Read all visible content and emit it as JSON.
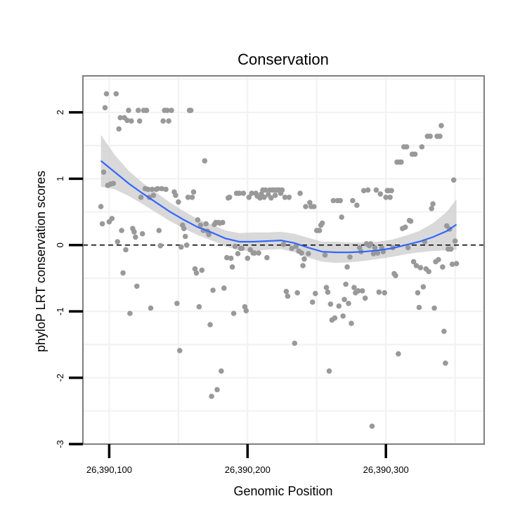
{
  "chart_data": {
    "type": "scatter",
    "title": "Conservation",
    "xlabel": "Genomic Position",
    "ylabel": "phyloP LRT conservation scores",
    "xlim": [
      26390081,
      26390371
    ],
    "ylim": [
      -3,
      2.55
    ],
    "x_ticks": [
      {
        "value": 26390100,
        "label": "26,390,100"
      },
      {
        "value": 26390200,
        "label": "26,390,200"
      },
      {
        "value": 26390300,
        "label": "26,390,300"
      }
    ],
    "y_ticks": [
      {
        "value": -3,
        "label": "-3"
      },
      {
        "value": -2,
        "label": "-2"
      },
      {
        "value": -1,
        "label": "-1"
      },
      {
        "value": 0,
        "label": "0"
      },
      {
        "value": 1,
        "label": "1"
      },
      {
        "value": 2,
        "label": "2"
      }
    ],
    "reference_line": {
      "y": 0,
      "style": "dashed"
    },
    "grid": true,
    "colors": {
      "points": "#999999",
      "smooth": "#3366ff",
      "band": "#cccccc",
      "panel_border": "#7f7f7f",
      "grid": "#f2f2f2"
    },
    "points": [
      [
        26390094,
        0.58
      ],
      [
        26390095,
        0.32
      ],
      [
        26390096,
        1.1
      ],
      [
        26390097,
        2.07
      ],
      [
        26390098,
        2.28
      ],
      [
        26390099,
        0.9
      ],
      [
        26390100,
        0.35
      ],
      [
        26390101,
        0.92
      ],
      [
        26390102,
        0.4
      ],
      [
        26390103,
        0.93
      ],
      [
        26390105,
        2.28
      ],
      [
        26390106,
        0.05
      ],
      [
        26390107,
        1.75
      ],
      [
        26390108,
        1.92
      ],
      [
        26390109,
        0.22
      ],
      [
        26390110,
        -0.42
      ],
      [
        26390111,
        1.92
      ],
      [
        26390112,
        -0.07
      ],
      [
        26390113,
        1.88
      ],
      [
        26390114,
        2.03
      ],
      [
        26390115,
        -1.03
      ],
      [
        26390116,
        1.87
      ],
      [
        26390117,
        0.25
      ],
      [
        26390118,
        0.2
      ],
      [
        26390119,
        0.12
      ],
      [
        26390120,
        -0.62
      ],
      [
        26390121,
        2.03
      ],
      [
        26390122,
        1.87
      ],
      [
        26390123,
        0.72
      ],
      [
        26390124,
        0.17
      ],
      [
        26390125,
        2.03
      ],
      [
        26390126,
        0.85
      ],
      [
        26390127,
        2.03
      ],
      [
        26390128,
        0.84
      ],
      [
        26390129,
        0.72
      ],
      [
        26390130,
        -0.95
      ],
      [
        26390131,
        0.84
      ],
      [
        26390132,
        0.75
      ],
      [
        26390134,
        0.84
      ],
      [
        26390135,
        0.85
      ],
      [
        26390136,
        0.22
      ],
      [
        26390137,
        -0.01
      ],
      [
        26390138,
        0.85
      ],
      [
        26390139,
        1.87
      ],
      [
        26390140,
        2.03
      ],
      [
        26390141,
        0.84
      ],
      [
        26390142,
        2.03
      ],
      [
        26390143,
        1.87
      ],
      [
        26390145,
        2.03
      ],
      [
        26390147,
        0.8
      ],
      [
        26390148,
        0.75
      ],
      [
        26390149,
        -0.88
      ],
      [
        26390150,
        0.65
      ],
      [
        26390151,
        -1.59
      ],
      [
        26390152,
        -0.03
      ],
      [
        26390153,
        0.3
      ],
      [
        26390154,
        0.25
      ],
      [
        26390155,
        0.13
      ],
      [
        26390156,
        0.0
      ],
      [
        26390157,
        0.72
      ],
      [
        26390158,
        2.03
      ],
      [
        26390159,
        2.03
      ],
      [
        26390160,
        0.72
      ],
      [
        26390161,
        0.8
      ],
      [
        26390162,
        -0.36
      ],
      [
        26390163,
        -0.42
      ],
      [
        26390164,
        0.38
      ],
      [
        26390165,
        -0.93
      ],
      [
        26390166,
        0.3
      ],
      [
        26390167,
        -0.38
      ],
      [
        26390168,
        0.22
      ],
      [
        26390169,
        1.27
      ],
      [
        26390170,
        0.32
      ],
      [
        26390171,
        0.21
      ],
      [
        26390172,
        0.16
      ],
      [
        26390173,
        -1.2
      ],
      [
        26390174,
        -2.28
      ],
      [
        26390175,
        -0.68
      ],
      [
        26390176,
        0.31
      ],
      [
        26390177,
        0.34
      ],
      [
        26390178,
        -2.18
      ],
      [
        26390179,
        0.34
      ],
      [
        26390180,
        0.33
      ],
      [
        26390181,
        -1.9
      ],
      [
        26390182,
        0.34
      ],
      [
        26390183,
        -0.65
      ],
      [
        26390185,
        -0.19
      ],
      [
        26390186,
        0.71
      ],
      [
        26390187,
        0.72
      ],
      [
        26390188,
        -0.2
      ],
      [
        26390189,
        -0.33
      ],
      [
        26390190,
        -1.03
      ],
      [
        26390191,
        -0.02
      ],
      [
        26390192,
        0.78
      ],
      [
        26390193,
        -0.13
      ],
      [
        26390194,
        0.78
      ],
      [
        26390195,
        -0.05
      ],
      [
        26390196,
        -0.05
      ],
      [
        26390197,
        0.78
      ],
      [
        26390198,
        -0.93
      ],
      [
        26390199,
        -0.99
      ],
      [
        26390200,
        -0.2
      ],
      [
        26390201,
        0.72
      ],
      [
        26390202,
        -0.07
      ],
      [
        26390203,
        0.78
      ],
      [
        26390204,
        -0.12
      ],
      [
        26390205,
        -0.12
      ],
      [
        26390206,
        0.78
      ],
      [
        26390207,
        0.74
      ],
      [
        26390208,
        -0.12
      ],
      [
        26390209,
        0.71
      ],
      [
        26390210,
        0.77
      ],
      [
        26390211,
        0.83
      ],
      [
        26390212,
        0.72
      ],
      [
        26390213,
        0.83
      ],
      [
        26390214,
        -0.19
      ],
      [
        26390215,
        0.76
      ],
      [
        26390216,
        0.83
      ],
      [
        26390217,
        0.71
      ],
      [
        26390218,
        0.83
      ],
      [
        26390219,
        0.83
      ],
      [
        26390220,
        0.75
      ],
      [
        26390221,
        0.83
      ],
      [
        26390222,
        0.83
      ],
      [
        26390223,
        0.83
      ],
      [
        26390224,
        0.78
      ],
      [
        26390225,
        0.83
      ],
      [
        26390226,
        0.01
      ],
      [
        26390227,
        0.72
      ],
      [
        26390228,
        -0.7
      ],
      [
        26390229,
        -0.77
      ],
      [
        26390230,
        0.72
      ],
      [
        26390232,
        -0.05
      ],
      [
        26390234,
        -1.48
      ],
      [
        26390235,
        -0.02
      ],
      [
        26390236,
        -0.72
      ],
      [
        26390237,
        -0.09
      ],
      [
        26390238,
        0.78
      ],
      [
        26390239,
        -0.12
      ],
      [
        26390240,
        -0.31
      ],
      [
        26390241,
        -0.21
      ],
      [
        26390242,
        0.58
      ],
      [
        26390244,
        -0.13
      ],
      [
        26390245,
        0.64
      ],
      [
        26390246,
        0.58
      ],
      [
        26390247,
        -0.86
      ],
      [
        26390248,
        0.58
      ],
      [
        26390249,
        -0.73
      ],
      [
        26390250,
        0.22
      ],
      [
        26390251,
        0.22
      ],
      [
        26390252,
        0.22
      ],
      [
        26390253,
        0.3
      ],
      [
        26390254,
        0.33
      ],
      [
        26390256,
        -0.15
      ],
      [
        26390257,
        -0.64
      ],
      [
        26390258,
        -0.71
      ],
      [
        26390259,
        -1.9
      ],
      [
        26390260,
        -0.89
      ],
      [
        26390261,
        -1.13
      ],
      [
        26390262,
        0.67
      ],
      [
        26390263,
        -1.1
      ],
      [
        26390265,
        0.67
      ],
      [
        26390266,
        -0.92
      ],
      [
        26390267,
        0.67
      ],
      [
        26390268,
        0.42
      ],
      [
        26390269,
        -1.07
      ],
      [
        26390270,
        -0.82
      ],
      [
        26390271,
        -0.59
      ],
      [
        26390272,
        -0.33
      ],
      [
        26390273,
        -0.88
      ],
      [
        26390274,
        -0.18
      ],
      [
        26390275,
        -1.18
      ],
      [
        26390276,
        0.67
      ],
      [
        26390277,
        -0.64
      ],
      [
        26390278,
        -0.72
      ],
      [
        26390279,
        0.6
      ],
      [
        26390280,
        -0.69
      ],
      [
        26390281,
        -0.04
      ],
      [
        26390282,
        -0.1
      ],
      [
        26390283,
        -0.69
      ],
      [
        26390284,
        0.82
      ],
      [
        26390285,
        -0.8
      ],
      [
        26390286,
        0.02
      ],
      [
        26390287,
        0.83
      ],
      [
        26390288,
        -0.01
      ],
      [
        26390289,
        0.02
      ],
      [
        26390290,
        -2.73
      ],
      [
        26390291,
        -0.13
      ],
      [
        26390292,
        -0.04
      ],
      [
        26390293,
        0.83
      ],
      [
        26390294,
        -0.12
      ],
      [
        26390295,
        -0.71
      ],
      [
        26390296,
        0.77
      ],
      [
        26390297,
        -0.04
      ],
      [
        26390298,
        -0.1
      ],
      [
        26390299,
        -0.72
      ],
      [
        26390300,
        0.72
      ],
      [
        26390301,
        0.82
      ],
      [
        26390302,
        0.82
      ],
      [
        26390303,
        0.72
      ],
      [
        26390304,
        0.82
      ],
      [
        26390305,
        -0.04
      ],
      [
        26390306,
        -0.43
      ],
      [
        26390307,
        -0.46
      ],
      [
        26390308,
        1.25
      ],
      [
        26390309,
        -1.64
      ],
      [
        26390310,
        1.25
      ],
      [
        26390311,
        1.25
      ],
      [
        26390312,
        0.25
      ],
      [
        26390313,
        1.48
      ],
      [
        26390314,
        0.27
      ],
      [
        26390315,
        1.48
      ],
      [
        26390316,
        -0.04
      ],
      [
        26390317,
        0.37
      ],
      [
        26390318,
        0.36
      ],
      [
        26390319,
        1.37
      ],
      [
        26390320,
        -0.25
      ],
      [
        26390321,
        1.37
      ],
      [
        26390322,
        -0.31
      ],
      [
        26390323,
        -0.72
      ],
      [
        26390324,
        -0.94
      ],
      [
        26390325,
        -0.34
      ],
      [
        26390326,
        1.48
      ],
      [
        26390327,
        -0.63
      ],
      [
        26390328,
        0.05
      ],
      [
        26390329,
        -0.36
      ],
      [
        26390330,
        1.64
      ],
      [
        26390331,
        -0.4
      ],
      [
        26390332,
        1.64
      ],
      [
        26390333,
        0.55
      ],
      [
        26390334,
        0.62
      ],
      [
        26390335,
        -0.95
      ],
      [
        26390336,
        -0.25
      ],
      [
        26390337,
        1.64
      ],
      [
        26390338,
        -0.22
      ],
      [
        26390339,
        1.64
      ],
      [
        26390340,
        1.8
      ],
      [
        26390341,
        -0.33
      ],
      [
        26390342,
        -1.3
      ],
      [
        26390343,
        -1.78
      ],
      [
        26390344,
        0.29
      ],
      [
        26390345,
        -0.06
      ],
      [
        26390346,
        0.24
      ],
      [
        26390347,
        -0.06
      ],
      [
        26390348,
        -0.29
      ],
      [
        26390349,
        0.98
      ],
      [
        26390350,
        0.06
      ],
      [
        26390351,
        -0.28
      ]
    ],
    "smooth": {
      "x": [
        26390094,
        26390104,
        26390114,
        26390124,
        26390134,
        26390144,
        26390154,
        26390164,
        26390174,
        26390184,
        26390194,
        26390204,
        26390214,
        26390224,
        26390234,
        26390244,
        26390254,
        26390264,
        26390274,
        26390284,
        26390294,
        26390304,
        26390314,
        26390324,
        26390334,
        26390344,
        26390351
      ],
      "y": [
        1.27,
        1.1,
        0.93,
        0.78,
        0.64,
        0.5,
        0.38,
        0.27,
        0.19,
        0.1,
        0.05,
        0.05,
        0.06,
        0.07,
        0.03,
        -0.04,
        -0.1,
        -0.11,
        -0.11,
        -0.1,
        -0.08,
        -0.05,
        0.0,
        0.05,
        0.12,
        0.21,
        0.31
      ],
      "lower": [
        0.88,
        0.84,
        0.74,
        0.62,
        0.49,
        0.36,
        0.25,
        0.15,
        0.07,
        -0.02,
        -0.08,
        -0.09,
        -0.07,
        -0.06,
        -0.11,
        -0.19,
        -0.25,
        -0.27,
        -0.26,
        -0.24,
        -0.21,
        -0.18,
        -0.14,
        -0.11,
        -0.09,
        -0.08,
        -0.07
      ],
      "upper": [
        1.66,
        1.36,
        1.12,
        0.94,
        0.79,
        0.64,
        0.51,
        0.39,
        0.31,
        0.22,
        0.18,
        0.19,
        0.19,
        0.2,
        0.17,
        0.11,
        0.05,
        0.05,
        0.04,
        0.04,
        0.05,
        0.08,
        0.14,
        0.21,
        0.33,
        0.5,
        0.69
      ]
    }
  }
}
